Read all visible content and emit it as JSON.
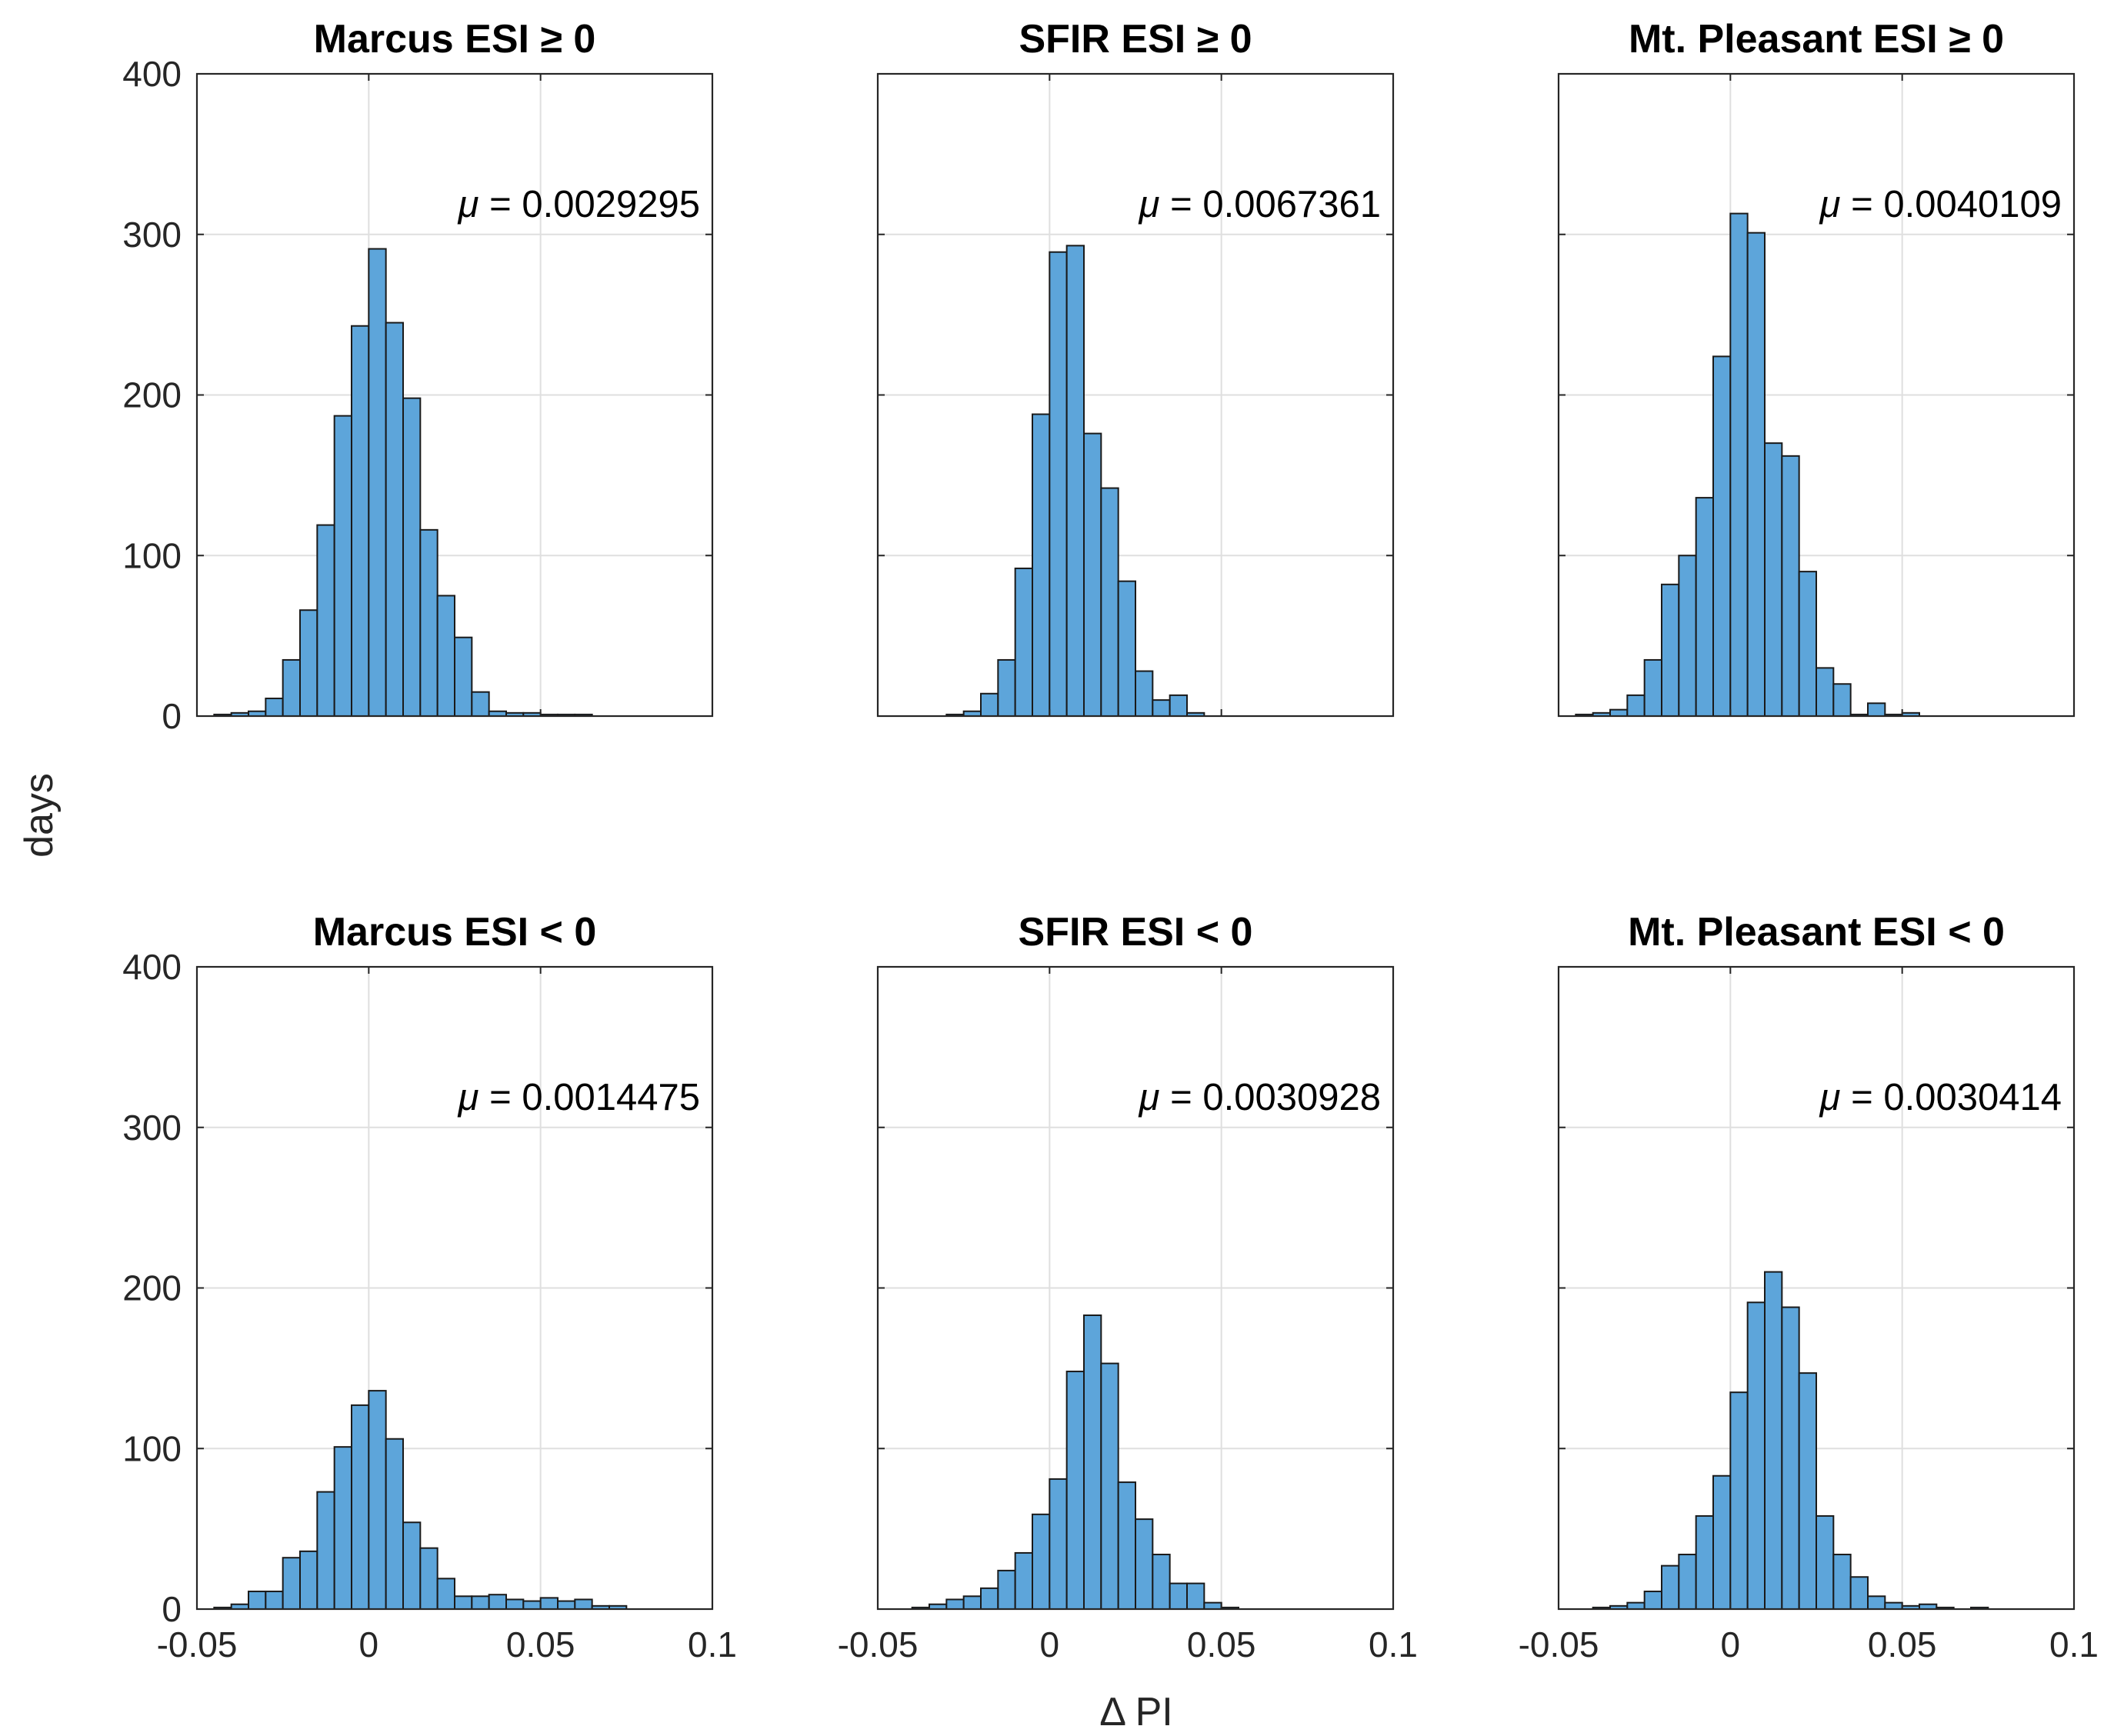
{
  "figure": {
    "ylabel": "days",
    "xlabel": "Δ PI",
    "mu_symbol": "μ",
    "bar_color": "#5DA5DA",
    "edge_color": "#1a1a1a"
  },
  "chart_data": [
    {
      "type": "bar",
      "title": "Marcus ESI ≥ 0",
      "mean_label": "= 0.0029295",
      "xlim": [
        -0.05,
        0.1
      ],
      "ylim": [
        0,
        400
      ],
      "xticks": [
        "-0.05",
        "0",
        "0.05",
        "0.1"
      ],
      "yticks": [
        "0",
        "100",
        "200",
        "300",
        "400"
      ],
      "bin_start": -0.045,
      "bin_width": 0.005,
      "values": [
        1,
        2,
        3,
        11,
        35,
        66,
        119,
        187,
        243,
        291,
        245,
        198,
        116,
        75,
        49,
        15,
        3,
        2,
        2,
        1,
        1,
        1,
        0,
        0,
        0,
        0,
        0,
        0,
        0,
        0
      ]
    },
    {
      "type": "bar",
      "title": "SFIR ESI ≥ 0",
      "mean_label": "= 0.0067361",
      "xlim": [
        -0.05,
        0.1
      ],
      "ylim": [
        0,
        400
      ],
      "xticks": [
        "-0.05",
        "0",
        "0.05",
        "0.1"
      ],
      "yticks": [
        "0",
        "100",
        "200",
        "300",
        "400"
      ],
      "bin_start": -0.03,
      "bin_width": 0.005,
      "values": [
        1,
        3,
        14,
        35,
        92,
        188,
        289,
        293,
        176,
        142,
        84,
        28,
        10,
        13,
        2,
        0,
        0,
        0,
        0,
        0,
        0,
        0,
        0,
        0,
        0,
        0
      ]
    },
    {
      "type": "bar",
      "title": "Mt. Pleasant ESI ≥ 0",
      "mean_label": "= 0.0040109",
      "xlim": [
        -0.05,
        0.1
      ],
      "ylim": [
        0,
        400
      ],
      "xticks": [
        "-0.05",
        "0",
        "0.05",
        "0.1"
      ],
      "yticks": [
        "0",
        "100",
        "200",
        "300",
        "400"
      ],
      "bin_start": -0.045,
      "bin_width": 0.005,
      "values": [
        1,
        2,
        4,
        13,
        35,
        82,
        100,
        136,
        224,
        313,
        301,
        170,
        162,
        90,
        30,
        20,
        1,
        8,
        1,
        2,
        0,
        0,
        0,
        0,
        0,
        0,
        0,
        0,
        0,
        0
      ]
    },
    {
      "type": "bar",
      "title": "Marcus ESI < 0",
      "mean_label": "= 0.0014475",
      "xlim": [
        -0.05,
        0.1
      ],
      "ylim": [
        0,
        400
      ],
      "xticks": [
        "-0.05",
        "0",
        "0.05",
        "0.1"
      ],
      "yticks": [
        "0",
        "100",
        "200",
        "300",
        "400"
      ],
      "bin_start": -0.045,
      "bin_width": 0.005,
      "values": [
        1,
        3,
        11,
        11,
        32,
        36,
        73,
        101,
        127,
        136,
        106,
        54,
        38,
        19,
        8,
        8,
        9,
        6,
        5,
        7,
        5,
        6,
        2,
        2,
        0,
        0,
        0,
        0,
        0,
        0
      ]
    },
    {
      "type": "bar",
      "title": "SFIR ESI < 0",
      "mean_label": "= 0.0030928",
      "xlim": [
        -0.05,
        0.1
      ],
      "ylim": [
        0,
        400
      ],
      "xticks": [
        "-0.05",
        "0",
        "0.05",
        "0.1"
      ],
      "yticks": [
        "0",
        "100",
        "200",
        "300",
        "400"
      ],
      "bin_start": -0.04,
      "bin_width": 0.005,
      "values": [
        1,
        3,
        6,
        8,
        13,
        24,
        35,
        59,
        81,
        148,
        183,
        153,
        79,
        56,
        34,
        16,
        16,
        4,
        1,
        0,
        0,
        0,
        0,
        0,
        0,
        0,
        0,
        0,
        0
      ]
    },
    {
      "type": "bar",
      "title": "Mt. Pleasant ESI < 0",
      "mean_label": "= 0.0030414",
      "xlim": [
        -0.05,
        0.1
      ],
      "ylim": [
        0,
        400
      ],
      "xticks": [
        "-0.05",
        "0",
        "0.05",
        "0.1"
      ],
      "yticks": [
        "0",
        "100",
        "200",
        "300",
        "400"
      ],
      "bin_start": -0.04,
      "bin_width": 0.005,
      "values": [
        1,
        2,
        4,
        11,
        27,
        34,
        58,
        83,
        135,
        191,
        210,
        188,
        147,
        58,
        34,
        20,
        8,
        4,
        2,
        3,
        1,
        0,
        1,
        0,
        0,
        0,
        0,
        0,
        0
      ]
    }
  ]
}
